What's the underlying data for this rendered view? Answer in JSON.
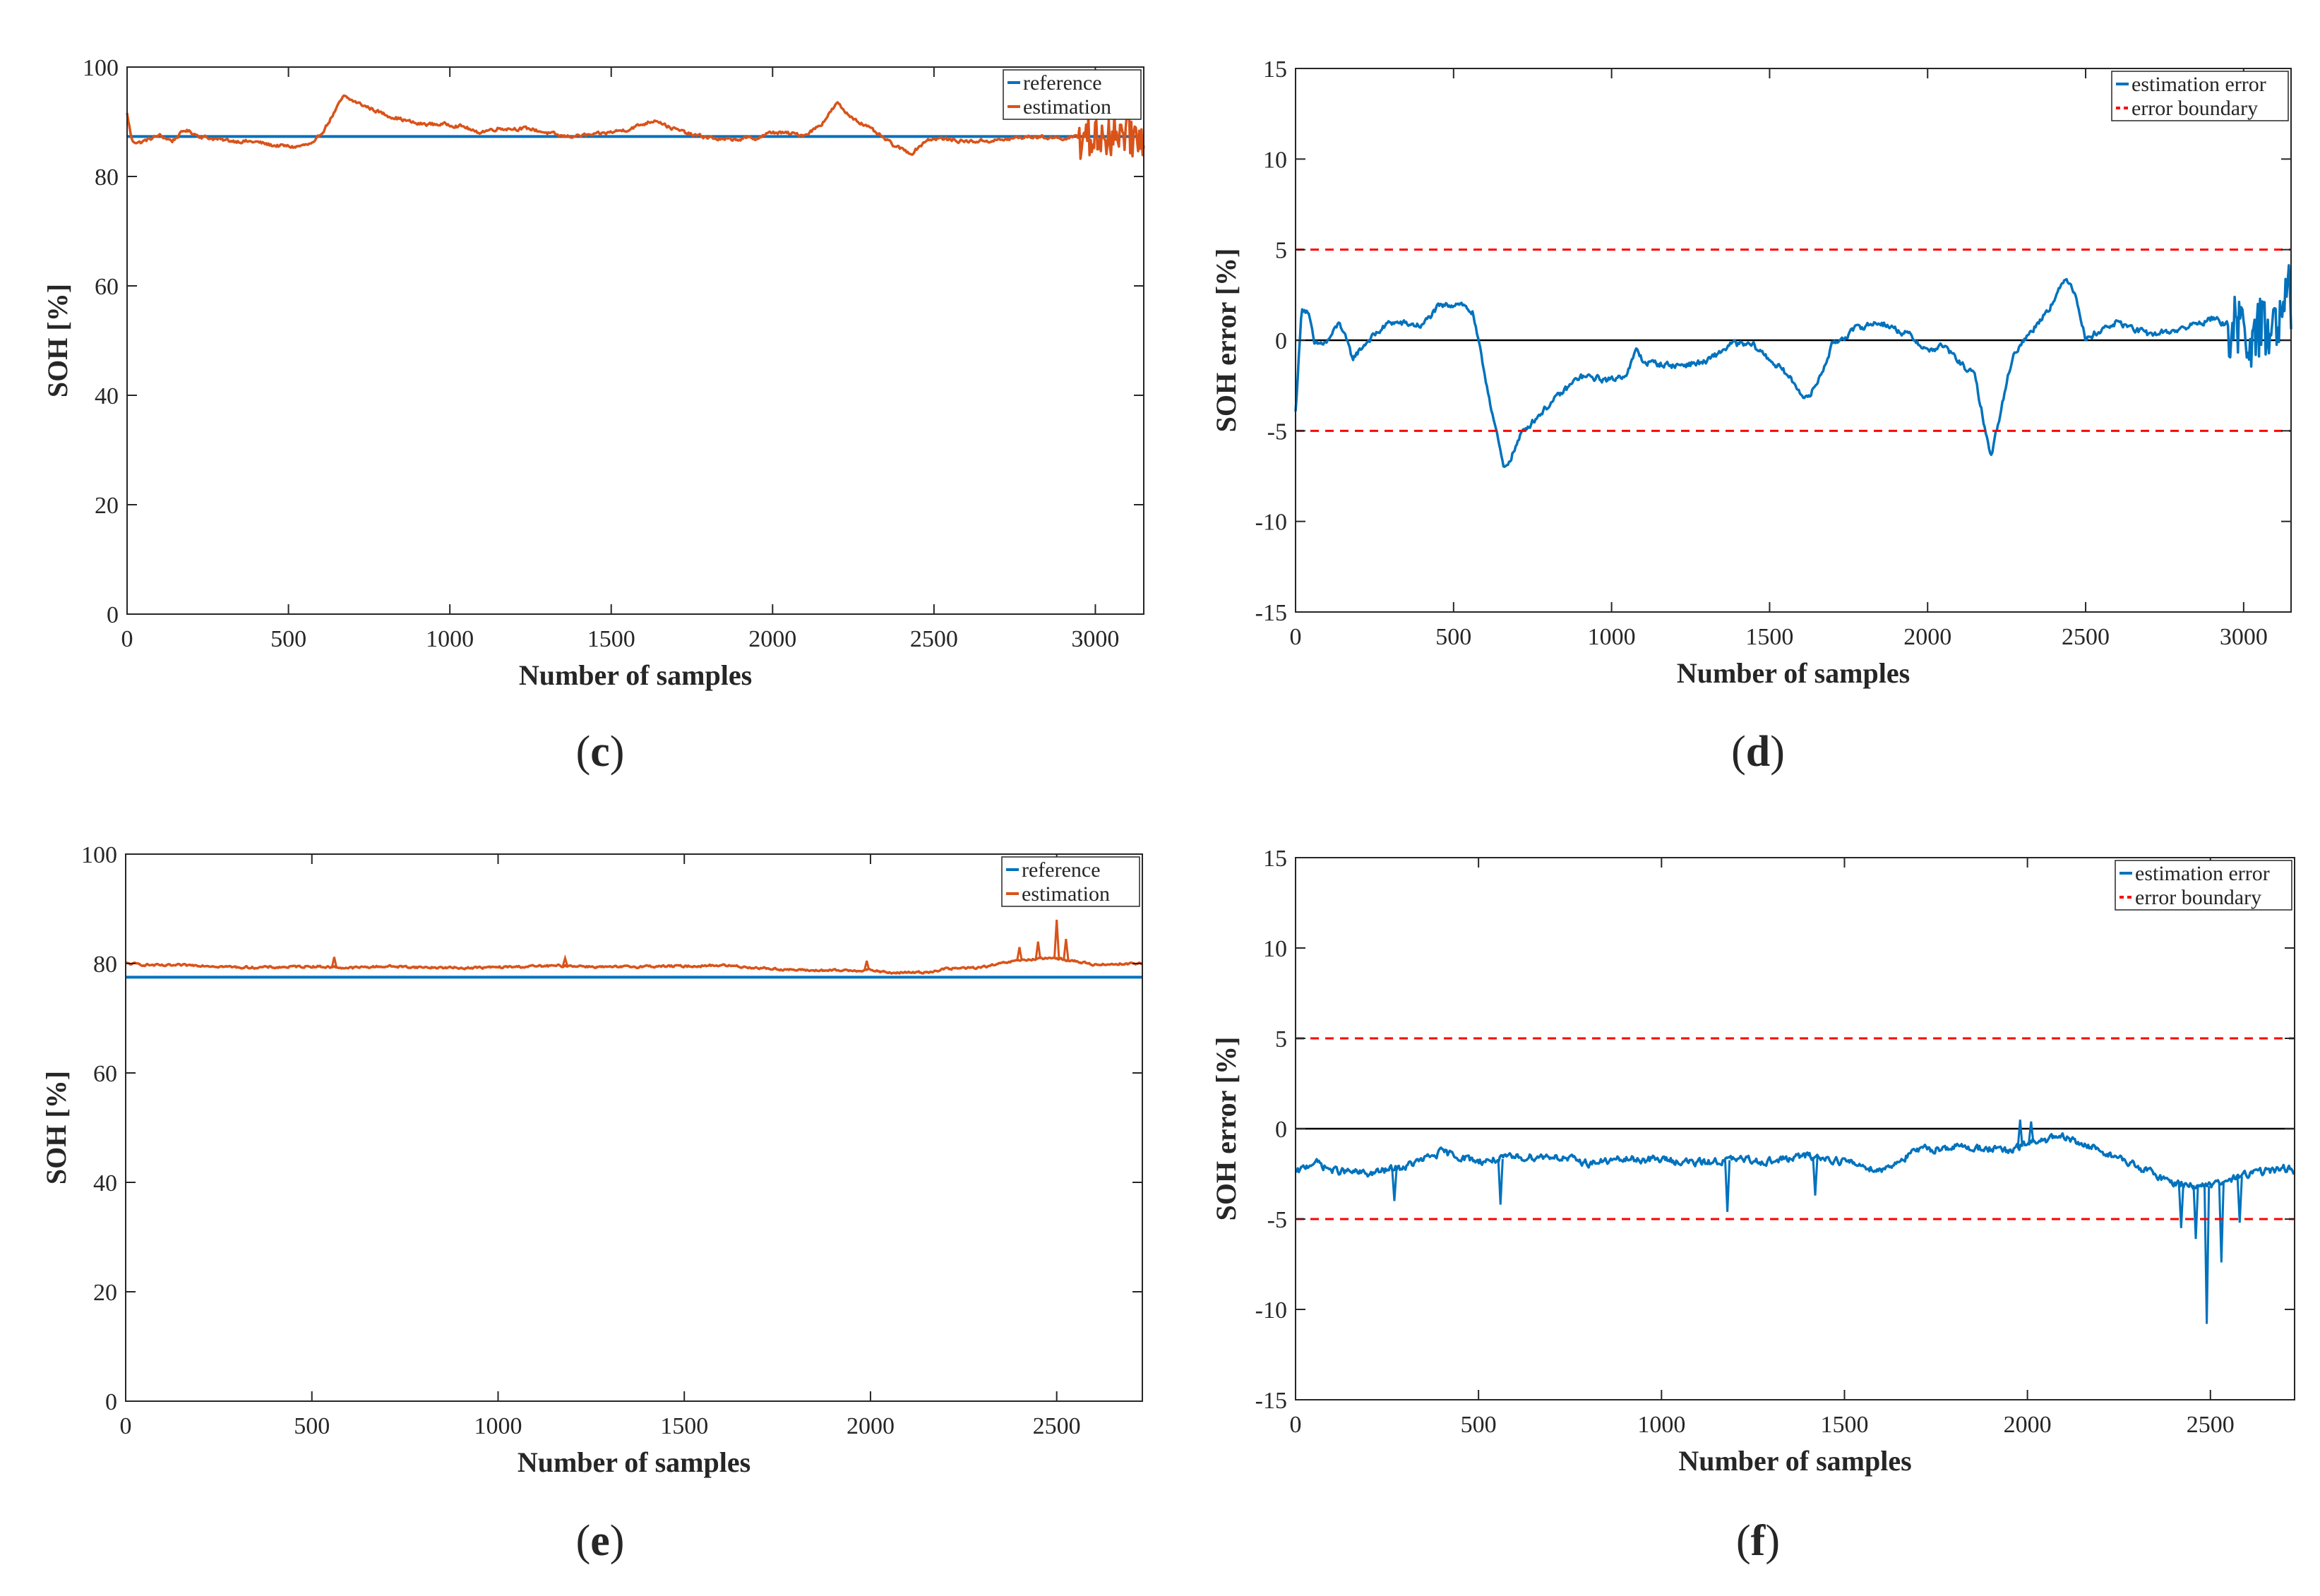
{
  "figure_labels": [
    "c",
    "d",
    "e",
    "f"
  ],
  "colors": {
    "reference": "#0072bd",
    "estimation": "#d95319",
    "error": "#0072bd",
    "boundary": "#ff0000",
    "zero_line": "#000000"
  },
  "chart_data": [
    {
      "id": "c",
      "type": "line",
      "xlabel": "Number of samples",
      "ylabel": "SOH [%]",
      "xlim": [
        0,
        3150
      ],
      "ylim": [
        0,
        100
      ],
      "xticks": [
        0,
        500,
        1000,
        1500,
        2000,
        2500,
        3000
      ],
      "yticks": [
        0,
        20,
        40,
        60,
        80,
        100
      ],
      "legend_position": "top-right",
      "series": [
        {
          "name": "reference",
          "kind": "constant",
          "y": 87.3
        },
        {
          "name": "estimation",
          "kind": "noisy",
          "points": [
            [
              0,
              91.5
            ],
            [
              15,
              86.5
            ],
            [
              40,
              86.2
            ],
            [
              100,
              87.5
            ],
            [
              140,
              86.5
            ],
            [
              180,
              88.5
            ],
            [
              230,
              87.3
            ],
            [
              300,
              86.6
            ],
            [
              400,
              86.3
            ],
            [
              450,
              85.7
            ],
            [
              520,
              85.4
            ],
            [
              580,
              86
            ],
            [
              620,
              89.5
            ],
            [
              650,
              92.5
            ],
            [
              670,
              94.6
            ],
            [
              700,
              93.8
            ],
            [
              800,
              91.3
            ],
            [
              900,
              89.6
            ],
            [
              1000,
              89.5
            ],
            [
              1050,
              89
            ],
            [
              1080,
              88
            ],
            [
              1150,
              88.8
            ],
            [
              1250,
              88.7
            ],
            [
              1350,
              87.3
            ],
            [
              1450,
              87.6
            ],
            [
              1550,
              88.6
            ],
            [
              1640,
              90.4
            ],
            [
              1680,
              89
            ],
            [
              1750,
              87.6
            ],
            [
              1850,
              86.7
            ],
            [
              1950,
              87
            ],
            [
              2000,
              88.1
            ],
            [
              2100,
              87.6
            ],
            [
              2150,
              89.5
            ],
            [
              2200,
              93.4
            ],
            [
              2230,
              91.5
            ],
            [
              2300,
              88.8
            ],
            [
              2380,
              85.5
            ],
            [
              2430,
              84.2
            ],
            [
              2480,
              86.8
            ],
            [
              2520,
              86.9
            ],
            [
              2600,
              86.4
            ],
            [
              2700,
              86.6
            ],
            [
              2800,
              87.3
            ],
            [
              2900,
              87
            ],
            [
              3000,
              87.3
            ],
            [
              3100,
              87.8
            ],
            [
              3150,
              87
            ]
          ],
          "noise": 0.55,
          "burst_from": 2950,
          "burst_amp": 4.0
        }
      ]
    },
    {
      "id": "d",
      "type": "line",
      "xlabel": "Number of samples",
      "ylabel": "SOH error [%]",
      "xlim": [
        0,
        3150
      ],
      "ylim": [
        -15,
        15
      ],
      "xticks": [
        0,
        500,
        1000,
        1500,
        2000,
        2500,
        3000
      ],
      "yticks": [
        -15,
        -10,
        -5,
        0,
        5,
        10,
        15
      ],
      "legend_position": "top-right",
      "reference_line": 0,
      "series": [
        {
          "name": "estimation error",
          "kind": "noisy",
          "points": [
            [
              0,
              -4
            ],
            [
              10,
              -1
            ],
            [
              20,
              1.8
            ],
            [
              40,
              1.6
            ],
            [
              60,
              -0.3
            ],
            [
              100,
              -0.1
            ],
            [
              140,
              1
            ],
            [
              180,
              -1
            ],
            [
              230,
              0
            ],
            [
              300,
              1
            ],
            [
              400,
              0.8
            ],
            [
              450,
              1.8
            ],
            [
              520,
              2.1
            ],
            [
              560,
              1.5
            ],
            [
              600,
              -2
            ],
            [
              640,
              -5.5
            ],
            [
              660,
              -7.2
            ],
            [
              680,
              -6.5
            ],
            [
              720,
              -5
            ],
            [
              800,
              -3.6
            ],
            [
              900,
              -2
            ],
            [
              1000,
              -2.2
            ],
            [
              1050,
              -1.8
            ],
            [
              1080,
              -0.5
            ],
            [
              1100,
              -1.2
            ],
            [
              1200,
              -1.4
            ],
            [
              1300,
              -1.2
            ],
            [
              1380,
              -0.2
            ],
            [
              1450,
              -0.3
            ],
            [
              1550,
              -1.8
            ],
            [
              1620,
              -3.3
            ],
            [
              1660,
              -2
            ],
            [
              1700,
              -0.2
            ],
            [
              1780,
              0.7
            ],
            [
              1850,
              1
            ],
            [
              1950,
              0.2
            ],
            [
              2000,
              -0.6
            ],
            [
              2050,
              -0.3
            ],
            [
              2100,
              -1.2
            ],
            [
              2150,
              -2
            ],
            [
              2200,
              -6.5
            ],
            [
              2230,
              -4
            ],
            [
              2270,
              -0.8
            ],
            [
              2350,
              1
            ],
            [
              2400,
              2.2
            ],
            [
              2440,
              3.5
            ],
            [
              2470,
              2.5
            ],
            [
              2500,
              0
            ],
            [
              2530,
              0.4
            ],
            [
              2600,
              1
            ],
            [
              2700,
              0.3
            ],
            [
              2800,
              0.6
            ],
            [
              2900,
              1.2
            ],
            [
              3000,
              0.5
            ],
            [
              3100,
              0.3
            ],
            [
              3150,
              2.5
            ]
          ],
          "noise": 0.3,
          "burst_from": 2950,
          "burst_amp": 1.9
        },
        {
          "name": "error boundary",
          "kind": "boundary",
          "y": [
            5,
            -5
          ]
        }
      ]
    },
    {
      "id": "e",
      "type": "line",
      "xlabel": "Number of samples",
      "ylabel": "SOH [%]",
      "xlim": [
        0,
        2730
      ],
      "ylim": [
        0,
        100
      ],
      "xticks": [
        0,
        500,
        1000,
        1500,
        2000,
        2500
      ],
      "yticks": [
        0,
        20,
        40,
        60,
        80,
        100
      ],
      "legend_position": "top-right",
      "series": [
        {
          "name": "reference",
          "kind": "constant",
          "y": 77.5
        },
        {
          "name": "estimation",
          "kind": "noisy",
          "points": [
            [
              0,
              80
            ],
            [
              100,
              79.6
            ],
            [
              200,
              79.7
            ],
            [
              300,
              79.3
            ],
            [
              400,
              79.3
            ],
            [
              500,
              79.5
            ],
            [
              600,
              79.2
            ],
            [
              700,
              79.5
            ],
            [
              800,
              79.3
            ],
            [
              900,
              79.2
            ],
            [
              1000,
              79.3
            ],
            [
              1100,
              79.5
            ],
            [
              1200,
              79.6
            ],
            [
              1300,
              79.3
            ],
            [
              1400,
              79.5
            ],
            [
              1500,
              79.5
            ],
            [
              1600,
              79.7
            ],
            [
              1700,
              79.2
            ],
            [
              1800,
              78.8
            ],
            [
              1900,
              78.7
            ],
            [
              2000,
              78.8
            ],
            [
              2050,
              78.3
            ],
            [
              2150,
              78.4
            ],
            [
              2200,
              79
            ],
            [
              2300,
              79.3
            ],
            [
              2400,
              80.6
            ],
            [
              2500,
              81
            ],
            [
              2600,
              79.8
            ],
            [
              2700,
              80
            ],
            [
              2730,
              80
            ]
          ],
          "noise": 0.35,
          "spikes": [
            [
              560,
              81.2
            ],
            [
              1180,
              81
            ],
            [
              1990,
              80.5
            ],
            [
              2400,
              83
            ],
            [
              2450,
              84
            ],
            [
              2500,
              88
            ],
            [
              2525,
              84.5
            ]
          ]
        }
      ]
    },
    {
      "id": "f",
      "type": "line",
      "xlabel": "Number of samples",
      "ylabel": "SOH error [%]",
      "xlim": [
        0,
        2730
      ],
      "ylim": [
        -15,
        15
      ],
      "xticks": [
        0,
        500,
        1000,
        1500,
        2000,
        2500
      ],
      "yticks": [
        -15,
        -10,
        -5,
        0,
        5,
        10,
        15
      ],
      "legend_position": "top-right",
      "reference_line": 0,
      "series": [
        {
          "name": "estimation error",
          "kind": "noisy",
          "points": [
            [
              0,
              -2.5
            ],
            [
              50,
              -1.8
            ],
            [
              100,
              -2.3
            ],
            [
              200,
              -2.5
            ],
            [
              300,
              -2.1
            ],
            [
              400,
              -1.3
            ],
            [
              500,
              -1.8
            ],
            [
              600,
              -1.6
            ],
            [
              700,
              -1.5
            ],
            [
              800,
              -1.9
            ],
            [
              900,
              -1.7
            ],
            [
              1000,
              -1.7
            ],
            [
              1100,
              -1.9
            ],
            [
              1200,
              -1.7
            ],
            [
              1300,
              -1.8
            ],
            [
              1400,
              -1.5
            ],
            [
              1500,
              -1.8
            ],
            [
              1600,
              -2.3
            ],
            [
              1700,
              -1.2
            ],
            [
              1800,
              -1.0
            ],
            [
              1900,
              -1.1
            ],
            [
              1950,
              -1.3
            ],
            [
              2000,
              -0.8
            ],
            [
              2050,
              -0.6
            ],
            [
              2100,
              -0.5
            ],
            [
              2200,
              -1.2
            ],
            [
              2300,
              -2.1
            ],
            [
              2400,
              -3.0
            ],
            [
              2500,
              -3.2
            ],
            [
              2600,
              -2.5
            ],
            [
              2700,
              -2.2
            ],
            [
              2730,
              -2.3
            ]
          ],
          "noise": 0.35,
          "spikes": [
            [
              270,
              -4
            ],
            [
              560,
              -4.2
            ],
            [
              1180,
              -4.6
            ],
            [
              1420,
              -3.7
            ],
            [
              1980,
              0.5
            ],
            [
              2010,
              0.4
            ],
            [
              2420,
              -5.5
            ],
            [
              2460,
              -6.1
            ],
            [
              2490,
              -10.8
            ],
            [
              2530,
              -7.4
            ],
            [
              2580,
              -5.2
            ]
          ]
        },
        {
          "name": "error boundary",
          "kind": "boundary",
          "y": [
            5,
            -5
          ]
        }
      ]
    }
  ]
}
